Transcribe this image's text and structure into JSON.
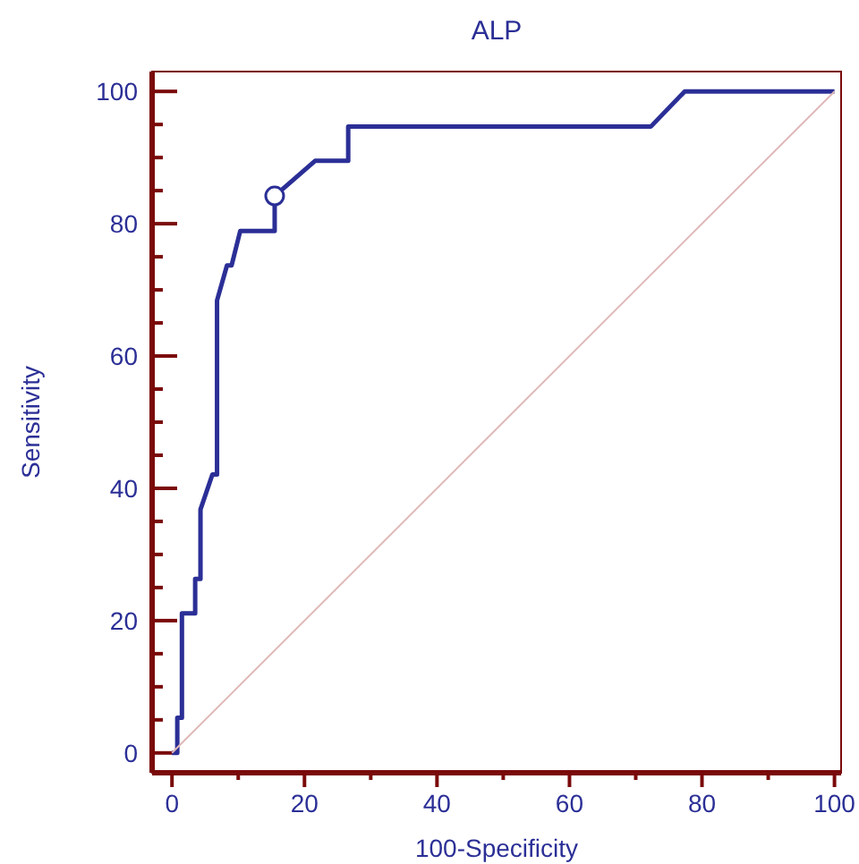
{
  "chart_data": {
    "type": "line",
    "title": "ALP",
    "xlabel": "100-Specificity",
    "ylabel": "Sensitivity",
    "xlim": [
      -3,
      101
    ],
    "ylim": [
      -3,
      103
    ],
    "xticks": [
      0,
      {
        "value": 10,
        "label": null
      },
      20,
      {
        "value": 30,
        "label": null
      },
      40,
      {
        "value": 50,
        "label": null
      },
      60,
      {
        "value": 70,
        "label": null
      },
      80,
      {
        "value": 90,
        "label": null
      },
      100
    ],
    "yticks": [
      0,
      {
        "value": 5,
        "label": null
      },
      {
        "value": 10,
        "label": null
      },
      {
        "value": 15,
        "label": null
      },
      20,
      {
        "value": 25,
        "label": null
      },
      {
        "value": 30,
        "label": null
      },
      {
        "value": 35,
        "label": null
      },
      40,
      {
        "value": 45,
        "label": null
      },
      {
        "value": 50,
        "label": null
      },
      {
        "value": 55,
        "label": null
      },
      60,
      {
        "value": 65,
        "label": null
      },
      {
        "value": 70,
        "label": null
      },
      {
        "value": 75,
        "label": null
      },
      80,
      {
        "value": 85,
        "label": null
      },
      {
        "value": 90,
        "label": null
      },
      {
        "value": 95,
        "label": null
      },
      100
    ],
    "grid": false,
    "marker": "none",
    "line_style": "solid",
    "series": [
      {
        "color": "#2b2f96",
        "x": [
          0,
          0.8,
          0.8,
          1.5,
          1.5,
          3.5,
          3.5,
          4.3,
          4.3,
          6.1,
          6.8,
          6.8,
          8.3,
          9.0,
          10.3,
          15.5,
          15.5,
          21.6,
          26.6,
          26.6,
          72.3,
          77.4,
          100
        ],
        "values": [
          0,
          0,
          5.3,
          5.3,
          21.1,
          21.1,
          26.3,
          26.3,
          36.8,
          42.1,
          42.1,
          68.4,
          73.7,
          73.7,
          78.9,
          78.9,
          84.2,
          89.5,
          89.5,
          94.7,
          94.7,
          100,
          100
        ]
      },
      {
        "type": "scatter",
        "color": "#2b2f96",
        "marker": "circle",
        "x": [
          15.5
        ],
        "values": [
          84.2
        ]
      },
      {
        "color": "#e0b8b8",
        "x": [
          0,
          100
        ],
        "values": [
          0,
          100
        ]
      }
    ]
  }
}
